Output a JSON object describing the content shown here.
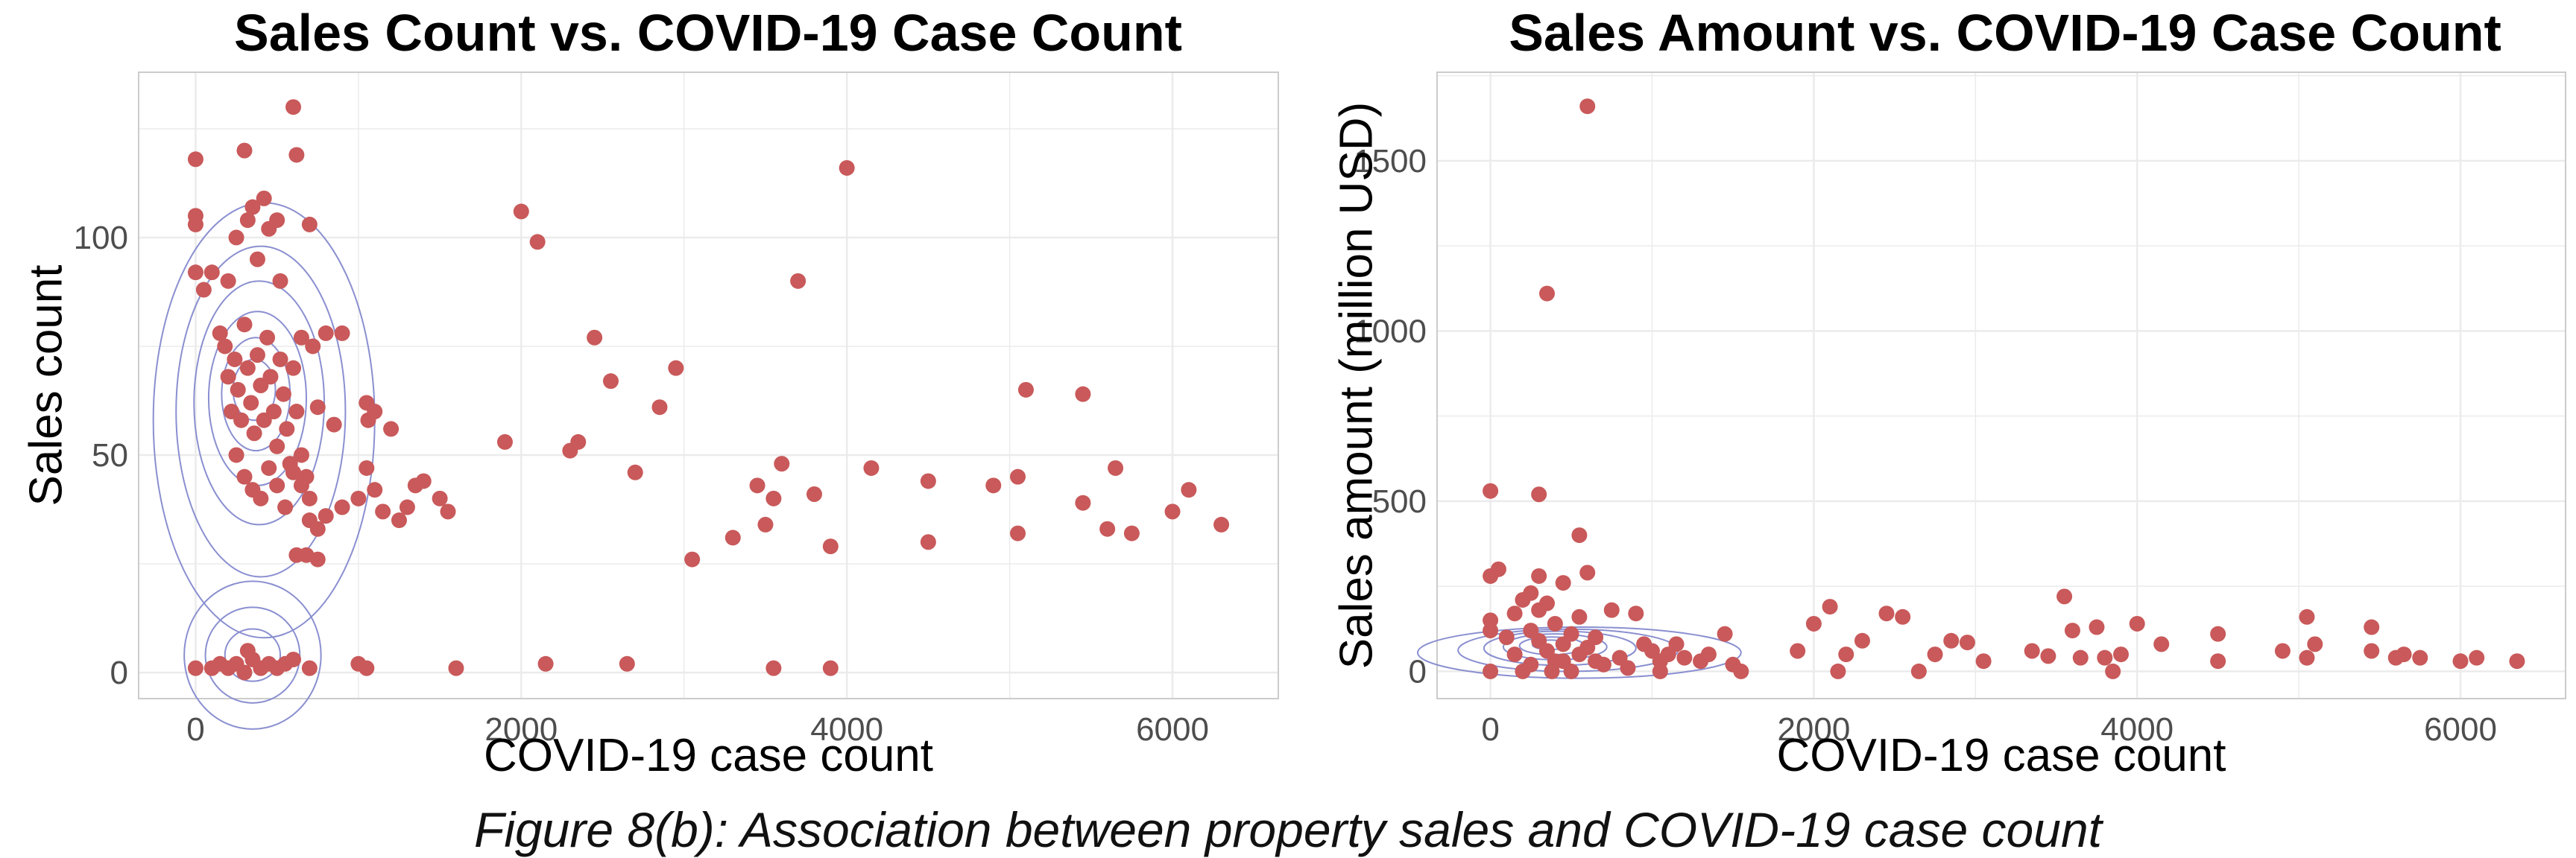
{
  "caption": "Figure 8(b): Association between property sales and COVID-19 case count",
  "colors": {
    "point": "#c9595a",
    "contour": "#8a8fd0",
    "grid": "#ebebeb",
    "panel_border": "#cccccc",
    "tick_text": "#4d4d4d",
    "text": "#000000"
  },
  "chart_data": [
    {
      "type": "scatter",
      "title": "Sales Count vs. COVID-19 Case Count",
      "xlabel": "COVID-19 case count",
      "ylabel": "Sales count",
      "xlim": [
        -350,
        6650
      ],
      "ylim": [
        -6,
        138
      ],
      "xticks": [
        0,
        2000,
        4000,
        6000
      ],
      "xtick_labels": [
        "0",
        "2000",
        "4000",
        "6000"
      ],
      "yticks": [
        0,
        50,
        100
      ],
      "ytick_labels": [
        "0",
        "50",
        "100"
      ],
      "grid": true,
      "contours": [
        {
          "cx": 420,
          "cy": 58,
          "rx": 680,
          "ry": 50
        },
        {
          "cx": 400,
          "cy": 60,
          "rx": 520,
          "ry": 38
        },
        {
          "cx": 390,
          "cy": 62,
          "rx": 400,
          "ry": 28
        },
        {
          "cx": 380,
          "cy": 63,
          "rx": 300,
          "ry": 20
        },
        {
          "cx": 370,
          "cy": 64,
          "rx": 210,
          "ry": 13
        },
        {
          "cx": 360,
          "cy": 65,
          "rx": 130,
          "ry": 7
        },
        {
          "cx": 350,
          "cy": 4,
          "rx": 420,
          "ry": 17
        },
        {
          "cx": 350,
          "cy": 4,
          "rx": 290,
          "ry": 11
        },
        {
          "cx": 350,
          "cy": 4,
          "rx": 170,
          "ry": 6
        }
      ],
      "points": [
        [
          0,
          118
        ],
        [
          0,
          105
        ],
        [
          0,
          103
        ],
        [
          0,
          92
        ],
        [
          50,
          88
        ],
        [
          100,
          92
        ],
        [
          200,
          90
        ],
        [
          250,
          100
        ],
        [
          300,
          120
        ],
        [
          320,
          104
        ],
        [
          350,
          107
        ],
        [
          380,
          95
        ],
        [
          420,
          109
        ],
        [
          450,
          102
        ],
        [
          500,
          104
        ],
        [
          520,
          90
        ],
        [
          600,
          130
        ],
        [
          620,
          119
        ],
        [
          650,
          77
        ],
        [
          700,
          103
        ],
        [
          720,
          75
        ],
        [
          750,
          61
        ],
        [
          800,
          78
        ],
        [
          850,
          57
        ],
        [
          900,
          78
        ],
        [
          1050,
          62
        ],
        [
          1060,
          58
        ],
        [
          1100,
          60
        ],
        [
          1200,
          56
        ],
        [
          150,
          78
        ],
        [
          180,
          75
        ],
        [
          200,
          68
        ],
        [
          220,
          60
        ],
        [
          240,
          72
        ],
        [
          260,
          65
        ],
        [
          280,
          58
        ],
        [
          300,
          80
        ],
        [
          320,
          70
        ],
        [
          340,
          62
        ],
        [
          360,
          55
        ],
        [
          380,
          73
        ],
        [
          400,
          66
        ],
        [
          420,
          58
        ],
        [
          440,
          77
        ],
        [
          460,
          68
        ],
        [
          480,
          60
        ],
        [
          500,
          52
        ],
        [
          520,
          72
        ],
        [
          540,
          64
        ],
        [
          560,
          56
        ],
        [
          580,
          48
        ],
        [
          600,
          70
        ],
        [
          620,
          60
        ],
        [
          650,
          50
        ],
        [
          680,
          45
        ],
        [
          700,
          40
        ],
        [
          250,
          50
        ],
        [
          300,
          45
        ],
        [
          350,
          42
        ],
        [
          400,
          40
        ],
        [
          450,
          47
        ],
        [
          500,
          43
        ],
        [
          550,
          38
        ],
        [
          600,
          46
        ],
        [
          650,
          43
        ],
        [
          700,
          35
        ],
        [
          750,
          33
        ],
        [
          800,
          36
        ],
        [
          900,
          38
        ],
        [
          1000,
          40
        ],
        [
          1050,
          47
        ],
        [
          1100,
          42
        ],
        [
          1150,
          37
        ],
        [
          1250,
          35
        ],
        [
          1300,
          38
        ],
        [
          1350,
          43
        ],
        [
          1400,
          44
        ],
        [
          1500,
          40
        ],
        [
          1550,
          37
        ],
        [
          620,
          27
        ],
        [
          680,
          27
        ],
        [
          750,
          26
        ],
        [
          2000,
          106
        ],
        [
          2100,
          99
        ],
        [
          2450,
          77
        ],
        [
          2550,
          67
        ],
        [
          2300,
          51
        ],
        [
          2350,
          53
        ],
        [
          1900,
          53
        ],
        [
          2700,
          46
        ],
        [
          2850,
          61
        ],
        [
          2950,
          70
        ],
        [
          3050,
          26
        ],
        [
          3300,
          31
        ],
        [
          3450,
          43
        ],
        [
          3500,
          34
        ],
        [
          3550,
          40
        ],
        [
          3600,
          48
        ],
        [
          3700,
          90
        ],
        [
          3800,
          41
        ],
        [
          3900,
          29
        ],
        [
          4000,
          116
        ],
        [
          4150,
          47
        ],
        [
          4500,
          44
        ],
        [
          4500,
          30
        ],
        [
          4900,
          43
        ],
        [
          5050,
          45
        ],
        [
          5050,
          32
        ],
        [
          5100,
          65
        ],
        [
          5450,
          64
        ],
        [
          5450,
          39
        ],
        [
          5600,
          33
        ],
        [
          5650,
          47
        ],
        [
          5750,
          32
        ],
        [
          6000,
          37
        ],
        [
          6100,
          42
        ],
        [
          6300,
          34
        ],
        [
          0,
          1
        ],
        [
          100,
          1
        ],
        [
          150,
          2
        ],
        [
          200,
          1
        ],
        [
          250,
          2
        ],
        [
          300,
          0
        ],
        [
          320,
          5
        ],
        [
          350,
          3
        ],
        [
          400,
          1
        ],
        [
          450,
          2
        ],
        [
          500,
          1
        ],
        [
          550,
          2
        ],
        [
          600,
          3
        ],
        [
          700,
          1
        ],
        [
          1000,
          2
        ],
        [
          1050,
          1
        ],
        [
          1600,
          1
        ],
        [
          2150,
          2
        ],
        [
          2650,
          2
        ],
        [
          3550,
          1
        ],
        [
          3900,
          1
        ]
      ]
    },
    {
      "type": "scatter",
      "title": "Sales Amount vs. COVID-19 Case Count",
      "xlabel": "COVID-19 case count",
      "ylabel": "Sales amount (million USD)",
      "xlim": [
        -330,
        6650
      ],
      "ylim": [
        -80,
        1760
      ],
      "xticks": [
        0,
        2000,
        4000,
        6000
      ],
      "xtick_labels": [
        "0",
        "2000",
        "4000",
        "6000"
      ],
      "yticks": [
        0,
        500,
        1000,
        1500
      ],
      "ytick_labels": [
        "0",
        "500",
        "1000",
        "1500"
      ],
      "grid": true,
      "contours": [
        {
          "cx": 550,
          "cy": 55,
          "rx": 1000,
          "ry": 75
        },
        {
          "cx": 480,
          "cy": 62,
          "rx": 680,
          "ry": 62
        },
        {
          "cx": 430,
          "cy": 68,
          "rx": 470,
          "ry": 50
        },
        {
          "cx": 400,
          "cy": 72,
          "rx": 320,
          "ry": 38
        },
        {
          "cx": 380,
          "cy": 75,
          "rx": 200,
          "ry": 26
        },
        {
          "cx": 370,
          "cy": 78,
          "rx": 110,
          "ry": 14
        }
      ],
      "points": [
        [
          0,
          530
        ],
        [
          0,
          280
        ],
        [
          0,
          150
        ],
        [
          0,
          120
        ],
        [
          0,
          0
        ],
        [
          50,
          300
        ],
        [
          300,
          520
        ],
        [
          350,
          1110
        ],
        [
          550,
          400
        ],
        [
          600,
          1660
        ],
        [
          100,
          100
        ],
        [
          150,
          50
        ],
        [
          200,
          0
        ],
        [
          250,
          20
        ],
        [
          250,
          120
        ],
        [
          300,
          90
        ],
        [
          300,
          180
        ],
        [
          350,
          200
        ],
        [
          350,
          60
        ],
        [
          400,
          140
        ],
        [
          400,
          30
        ],
        [
          450,
          80
        ],
        [
          450,
          260
        ],
        [
          500,
          110
        ],
        [
          500,
          0
        ],
        [
          550,
          50
        ],
        [
          550,
          160
        ],
        [
          600,
          290
        ],
        [
          600,
          70
        ],
        [
          650,
          30
        ],
        [
          650,
          100
        ],
        [
          700,
          20
        ],
        [
          750,
          180
        ],
        [
          800,
          40
        ],
        [
          850,
          10
        ],
        [
          900,
          170
        ],
        [
          950,
          80
        ],
        [
          1000,
          60
        ],
        [
          1050,
          30
        ],
        [
          1050,
          0
        ],
        [
          1100,
          50
        ],
        [
          1150,
          80
        ],
        [
          1200,
          40
        ],
        [
          1300,
          30
        ],
        [
          1350,
          50
        ],
        [
          1450,
          110
        ],
        [
          1500,
          20
        ],
        [
          1550,
          0
        ],
        [
          300,
          280
        ],
        [
          250,
          230
        ],
        [
          200,
          210
        ],
        [
          150,
          170
        ],
        [
          450,
          30
        ],
        [
          380,
          0
        ],
        [
          1900,
          60
        ],
        [
          2000,
          140
        ],
        [
          2100,
          190
        ],
        [
          2150,
          0
        ],
        [
          2200,
          50
        ],
        [
          2300,
          90
        ],
        [
          2450,
          170
        ],
        [
          2550,
          160
        ],
        [
          2650,
          0
        ],
        [
          2750,
          50
        ],
        [
          2850,
          90
        ],
        [
          2950,
          85
        ],
        [
          3050,
          30
        ],
        [
          3350,
          60
        ],
        [
          3450,
          45
        ],
        [
          3550,
          220
        ],
        [
          3600,
          120
        ],
        [
          3650,
          40
        ],
        [
          3750,
          130
        ],
        [
          3800,
          40
        ],
        [
          3850,
          0
        ],
        [
          3900,
          50
        ],
        [
          4000,
          140
        ],
        [
          4150,
          80
        ],
        [
          4500,
          110
        ],
        [
          4500,
          30
        ],
        [
          4900,
          60
        ],
        [
          5050,
          160
        ],
        [
          5050,
          40
        ],
        [
          5100,
          80
        ],
        [
          5450,
          130
        ],
        [
          5450,
          60
        ],
        [
          5600,
          40
        ],
        [
          5650,
          50
        ],
        [
          5750,
          40
        ],
        [
          6000,
          30
        ],
        [
          6100,
          40
        ],
        [
          6350,
          30
        ]
      ]
    }
  ]
}
